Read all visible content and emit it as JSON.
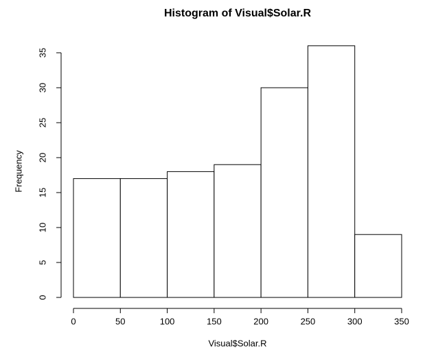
{
  "chart_data": {
    "type": "histogram",
    "title": "Histogram of Visual$Solar.R",
    "x_label": "Visual$Solar.R",
    "y_label": "Frequency",
    "bins": [
      0,
      50,
      100,
      150,
      200,
      250,
      300,
      350
    ],
    "values": [
      17,
      17,
      18,
      19,
      30,
      36,
      9
    ],
    "color": "#ffffff",
    "xlim": [
      0,
      350
    ],
    "xticks": [
      0,
      50,
      100,
      150,
      200,
      250,
      300,
      350
    ],
    "ylim": [
      0,
      36
    ],
    "yticks": [
      0,
      5,
      10,
      15,
      20,
      25,
      30,
      35
    ]
  }
}
